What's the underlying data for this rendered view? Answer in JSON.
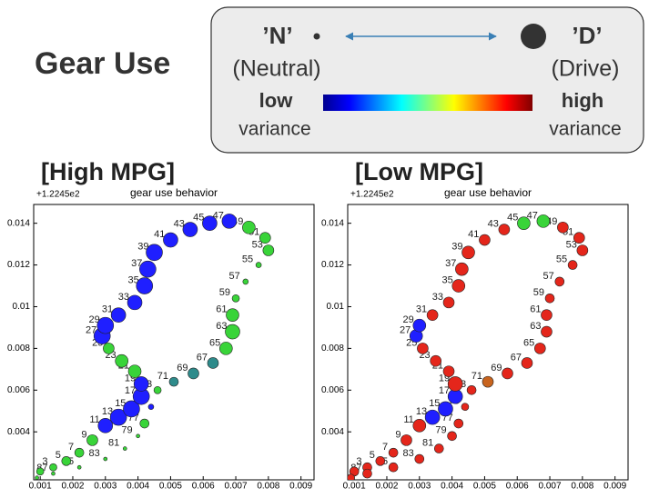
{
  "title": "Gear Use",
  "legend": {
    "neutral_label": "’N’",
    "neutral_desc": "(Neutral)",
    "drive_label": "’D’",
    "drive_desc": "(Drive)",
    "low": "low",
    "low_sub": "variance",
    "high": "high",
    "high_sub": "variance"
  },
  "chart_data": [
    {
      "type": "scatter",
      "heading": "[High MPG]",
      "title": "gear use behavior",
      "offset_label": "+1.2245e2",
      "xlim": [
        0.0008,
        0.0094
      ],
      "ylim": [
        0.0017,
        0.0149
      ],
      "xticks": [
        0.001,
        0.002,
        0.003,
        0.004,
        0.005,
        0.006,
        0.007,
        0.008,
        0.009
      ],
      "yticks": [
        0.004,
        0.006,
        0.008,
        0.01,
        0.012,
        0.014
      ],
      "series": [
        {
          "x": [
            0.001,
            0.0014,
            0.0018,
            0.0022,
            0.0026,
            0.003,
            0.0034,
            0.0038,
            0.0041,
            0.0041,
            0.0039,
            0.0035,
            0.0031,
            0.0029,
            0.003,
            0.0034,
            0.0039,
            0.0042,
            0.0043,
            0.0045,
            0.005,
            0.0056,
            0.0062,
            0.0068,
            0.0074,
            0.0079,
            0.008,
            0.0077,
            0.0073,
            0.007,
            0.0069,
            0.0069,
            0.0067,
            0.0063,
            0.0057,
            0.0051,
            0.0046,
            0.0044,
            0.0042,
            0.004,
            0.0036,
            0.003,
            0.0022,
            0.0014,
            0.0009
          ],
          "y": [
            0.0021,
            0.0023,
            0.0026,
            0.003,
            0.0036,
            0.0043,
            0.0047,
            0.0051,
            0.0057,
            0.0063,
            0.0069,
            0.0074,
            0.008,
            0.0086,
            0.0091,
            0.0096,
            0.0102,
            0.011,
            0.0118,
            0.0126,
            0.0132,
            0.0137,
            0.014,
            0.0141,
            0.0138,
            0.0133,
            0.0127,
            0.012,
            0.0112,
            0.0104,
            0.0096,
            0.0088,
            0.008,
            0.0073,
            0.0068,
            0.0064,
            0.006,
            0.0052,
            0.0044,
            0.0038,
            0.0032,
            0.0027,
            0.0023,
            0.002,
            0.0018
          ],
          "sizes": [
            4,
            4,
            5,
            5,
            6,
            8,
            9,
            9,
            9,
            8,
            7,
            7,
            6,
            9,
            9,
            8,
            8,
            9,
            9,
            9,
            8,
            8,
            8,
            8,
            7,
            6,
            6,
            3,
            3,
            4,
            7,
            8,
            7,
            6,
            6,
            5,
            4,
            3,
            5,
            2,
            2,
            2,
            2,
            2,
            2
          ],
          "colors": [
            "#39d439",
            "#39d439",
            "#39d439",
            "#39d439",
            "#39d439",
            "#1f1fff",
            "#1f1fff",
            "#1f1fff",
            "#1f1fff",
            "#1f1fff",
            "#39d439",
            "#39d439",
            "#39d439",
            "#1f1fff",
            "#1f1fff",
            "#1f1fff",
            "#1f1fff",
            "#1f1fff",
            "#1f1fff",
            "#1f1fff",
            "#1f1fff",
            "#1f1fff",
            "#1f1fff",
            "#1f1fff",
            "#39d439",
            "#39d439",
            "#39d439",
            "#39d439",
            "#39d439",
            "#39d439",
            "#39d439",
            "#39d439",
            "#39d439",
            "#2e8b8b",
            "#2e8b8b",
            "#2e8b8b",
            "#39d439",
            "#1f1fff",
            "#39d439",
            "#39d439",
            "#39d439",
            "#39d439",
            "#39d439",
            "#39d439",
            "#39d439"
          ],
          "labels": [
            "1",
            "3",
            "5",
            "7",
            "9",
            "11",
            "13",
            "15",
            "17",
            "19",
            "21",
            "23",
            "25",
            "27",
            "29",
            "31",
            "33",
            "35",
            "37",
            "39",
            "41",
            "43",
            "45",
            "47",
            "49",
            "51",
            "53",
            "55",
            "57",
            "59",
            "61",
            "63",
            "65",
            "67",
            "69",
            "71",
            "73",
            "75",
            "77",
            "79",
            "81",
            "83",
            "85",
            "87",
            "89"
          ]
        }
      ]
    },
    {
      "type": "scatter",
      "heading": "[Low MPG]",
      "title": "gear use behavior",
      "offset_label": "+1.2245e2",
      "xlim": [
        0.0008,
        0.0094
      ],
      "ylim": [
        0.0017,
        0.0149
      ],
      "xticks": [
        0.001,
        0.002,
        0.003,
        0.004,
        0.005,
        0.006,
        0.007,
        0.008,
        0.009
      ],
      "yticks": [
        0.004,
        0.006,
        0.008,
        0.01,
        0.012,
        0.014
      ],
      "series": [
        {
          "x": [
            0.001,
            0.0014,
            0.0018,
            0.0022,
            0.0026,
            0.003,
            0.0034,
            0.0038,
            0.0041,
            0.0041,
            0.0039,
            0.0035,
            0.0031,
            0.0029,
            0.003,
            0.0034,
            0.0039,
            0.0042,
            0.0043,
            0.0045,
            0.005,
            0.0056,
            0.0062,
            0.0068,
            0.0074,
            0.0079,
            0.008,
            0.0077,
            0.0073,
            0.007,
            0.0069,
            0.0069,
            0.0067,
            0.0063,
            0.0057,
            0.0051,
            0.0046,
            0.0044,
            0.0042,
            0.004,
            0.0036,
            0.003,
            0.0022,
            0.0014,
            0.0009
          ],
          "y": [
            0.0021,
            0.0023,
            0.0026,
            0.003,
            0.0036,
            0.0043,
            0.0047,
            0.0051,
            0.0057,
            0.0063,
            0.0069,
            0.0074,
            0.008,
            0.0086,
            0.0091,
            0.0096,
            0.0102,
            0.011,
            0.0118,
            0.0126,
            0.0132,
            0.0137,
            0.014,
            0.0141,
            0.0138,
            0.0133,
            0.0127,
            0.012,
            0.0112,
            0.0104,
            0.0096,
            0.0088,
            0.008,
            0.0073,
            0.0068,
            0.0064,
            0.006,
            0.0052,
            0.0044,
            0.0038,
            0.0032,
            0.0027,
            0.0023,
            0.002,
            0.0018
          ],
          "sizes": [
            5,
            5,
            5,
            5,
            6,
            7,
            8,
            8,
            8,
            8,
            6,
            6,
            6,
            7,
            7,
            6,
            6,
            7,
            7,
            7,
            6,
            6,
            7,
            7,
            6,
            6,
            6,
            5,
            5,
            5,
            6,
            6,
            6,
            6,
            6,
            6,
            5,
            4,
            5,
            5,
            5,
            5,
            5,
            5,
            4
          ],
          "colors": [
            "#e4261b",
            "#e4261b",
            "#e4261b",
            "#e4261b",
            "#e4261b",
            "#e4261b",
            "#1f1fff",
            "#1f1fff",
            "#1f1fff",
            "#e4261b",
            "#e4261b",
            "#e4261b",
            "#e4261b",
            "#1f1fff",
            "#1f1fff",
            "#e4261b",
            "#e4261b",
            "#e4261b",
            "#e4261b",
            "#e4261b",
            "#e4261b",
            "#e4261b",
            "#39d439",
            "#39d439",
            "#e4261b",
            "#e4261b",
            "#e4261b",
            "#e4261b",
            "#e4261b",
            "#e4261b",
            "#e4261b",
            "#e4261b",
            "#e4261b",
            "#e4261b",
            "#e4261b",
            "#c8641e",
            "#e4261b",
            "#e4261b",
            "#e4261b",
            "#e4261b",
            "#e4261b",
            "#e4261b",
            "#e4261b",
            "#e4261b",
            "#e4261b"
          ],
          "labels": [
            "1",
            "3",
            "5",
            "7",
            "9",
            "11",
            "13",
            "15",
            "17",
            "19",
            "21",
            "23",
            "25",
            "27",
            "29",
            "31",
            "33",
            "35",
            "37",
            "39",
            "41",
            "43",
            "45",
            "47",
            "49",
            "51",
            "53",
            "55",
            "57",
            "59",
            "61",
            "63",
            "65",
            "67",
            "69",
            "71",
            "73",
            "75",
            "77",
            "79",
            "81",
            "83",
            "85",
            "87",
            "89"
          ]
        }
      ]
    }
  ]
}
